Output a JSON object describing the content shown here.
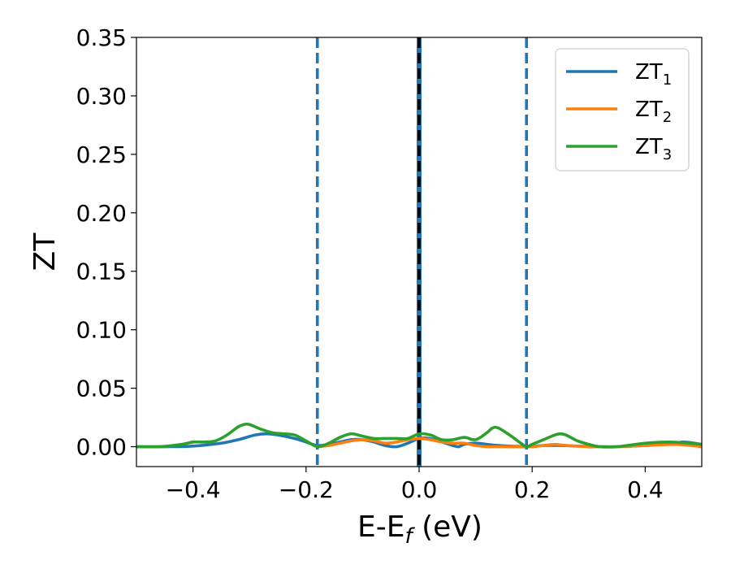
{
  "chart_data": {
    "type": "line",
    "xlabel": "E-E",
    "xlabel_sub": "f",
    "xlabel_unit": " (eV)",
    "ylabel": "ZT",
    "xlim": [
      -0.5,
      0.5
    ],
    "ylim": [
      -0.017,
      0.35
    ],
    "xticks": [
      -0.4,
      -0.2,
      0.0,
      0.2,
      0.4
    ],
    "xtick_labels": [
      "−0.4",
      "−0.2",
      "0.0",
      "0.2",
      "0.4"
    ],
    "yticks": [
      0.0,
      0.05,
      0.1,
      0.15,
      0.2,
      0.25,
      0.3,
      0.35
    ],
    "ytick_labels": [
      "0.00",
      "0.05",
      "0.10",
      "0.15",
      "0.20",
      "0.25",
      "0.30",
      "0.35"
    ],
    "grid": false,
    "legend_position": "top-right",
    "series": [
      {
        "name": "ZT",
        "name_sub": "1",
        "color": "#1f77b4",
        "x": [
          -0.5,
          -0.45,
          -0.4,
          -0.35,
          -0.32,
          -0.29,
          -0.27,
          -0.25,
          -0.22,
          -0.2,
          -0.18,
          -0.16,
          -0.14,
          -0.12,
          -0.1,
          -0.08,
          -0.06,
          -0.04,
          -0.02,
          0.0,
          0.02,
          0.04,
          0.06,
          0.07,
          0.08,
          0.1,
          0.12,
          0.14,
          0.16,
          0.18,
          0.19,
          0.2,
          0.22,
          0.25,
          0.28,
          0.3,
          0.32,
          0.35,
          0.4,
          0.45,
          0.47,
          0.5
        ],
        "y": [
          0.0,
          0.0,
          0.0005,
          0.003,
          0.006,
          0.01,
          0.011,
          0.01,
          0.007,
          0.004,
          0.001,
          0.002,
          0.004,
          0.006,
          0.006,
          0.004,
          0.001,
          0.0,
          0.003,
          0.007,
          0.007,
          0.004,
          0.001,
          0.0,
          0.002,
          0.003,
          0.002,
          0.001,
          0.0005,
          0.0002,
          0.0,
          0.0002,
          0.001,
          0.001,
          0.0005,
          0.0002,
          0.0,
          0.0,
          0.001,
          0.003,
          0.004,
          0.002
        ]
      },
      {
        "name": "ZT",
        "name_sub": "2",
        "color": "#ff7f0e",
        "x": [
          -0.18,
          -0.16,
          -0.14,
          -0.12,
          -0.1,
          -0.08,
          -0.06,
          -0.04,
          -0.02,
          0.0,
          0.02,
          0.04,
          0.06,
          0.08,
          0.1,
          0.12,
          0.14,
          0.16,
          0.18,
          0.2,
          0.22,
          0.24,
          0.26,
          0.28,
          0.3,
          0.35,
          0.4,
          0.45,
          0.48,
          0.5
        ],
        "y": [
          0.0,
          0.001,
          0.003,
          0.005,
          0.006,
          0.005,
          0.003,
          0.004,
          0.006,
          0.007,
          0.006,
          0.004,
          0.003,
          0.003,
          0.001,
          0.0,
          0.0,
          0.0,
          0.0,
          0.0,
          0.001,
          0.002,
          0.001,
          0.0005,
          0.0,
          0.0,
          0.001,
          0.002,
          0.001,
          0.0
        ]
      },
      {
        "name": "ZT",
        "name_sub": "3",
        "color": "#2ca02c",
        "x": [
          -0.5,
          -0.46,
          -0.42,
          -0.4,
          -0.38,
          -0.36,
          -0.34,
          -0.32,
          -0.31,
          -0.3,
          -0.28,
          -0.26,
          -0.24,
          -0.22,
          -0.2,
          -0.18,
          -0.16,
          -0.14,
          -0.12,
          -0.1,
          -0.08,
          -0.06,
          -0.04,
          -0.02,
          0.0,
          0.02,
          0.04,
          0.06,
          0.08,
          0.1,
          0.12,
          0.13,
          0.14,
          0.16,
          0.18,
          0.19,
          0.2,
          0.22,
          0.24,
          0.25,
          0.26,
          0.28,
          0.3,
          0.32,
          0.35,
          0.4,
          0.44,
          0.48,
          0.5
        ],
        "y": [
          0.0,
          0.0,
          0.002,
          0.004,
          0.004,
          0.005,
          0.01,
          0.017,
          0.019,
          0.019,
          0.015,
          0.012,
          0.011,
          0.01,
          0.005,
          0.0,
          0.003,
          0.008,
          0.011,
          0.009,
          0.007,
          0.007,
          0.007,
          0.007,
          0.011,
          0.01,
          0.006,
          0.006,
          0.008,
          0.006,
          0.012,
          0.016,
          0.016,
          0.01,
          0.003,
          0.0,
          0.002,
          0.006,
          0.01,
          0.011,
          0.01,
          0.005,
          0.002,
          0.0,
          0.0,
          0.003,
          0.004,
          0.003,
          0.002
        ]
      }
    ],
    "vlines": [
      {
        "x": -0.18,
        "color": "#1f77b4",
        "style": "dashed"
      },
      {
        "x": 0.0,
        "color": "#1f77b4",
        "style": "solid-thick"
      },
      {
        "x": 0.0,
        "color": "#000000",
        "style": "dashed"
      },
      {
        "x": 0.19,
        "color": "#1f77b4",
        "style": "dashed"
      }
    ]
  }
}
